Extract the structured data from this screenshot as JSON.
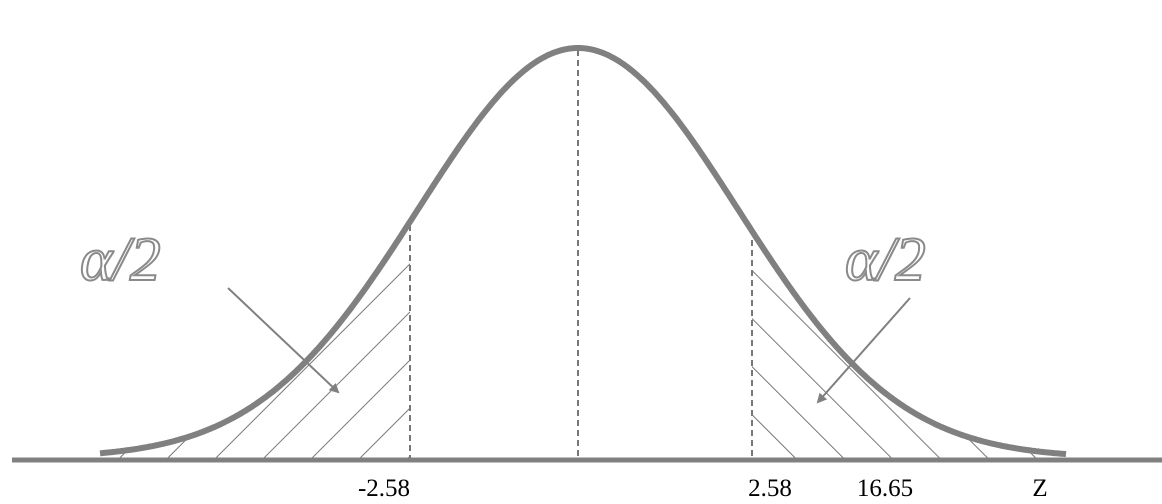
{
  "annotations": {
    "left": "α/2",
    "right": "α/2"
  },
  "x_labels": [
    "-2.58",
    "2.58",
    "16.65",
    "Z"
  ]
}
